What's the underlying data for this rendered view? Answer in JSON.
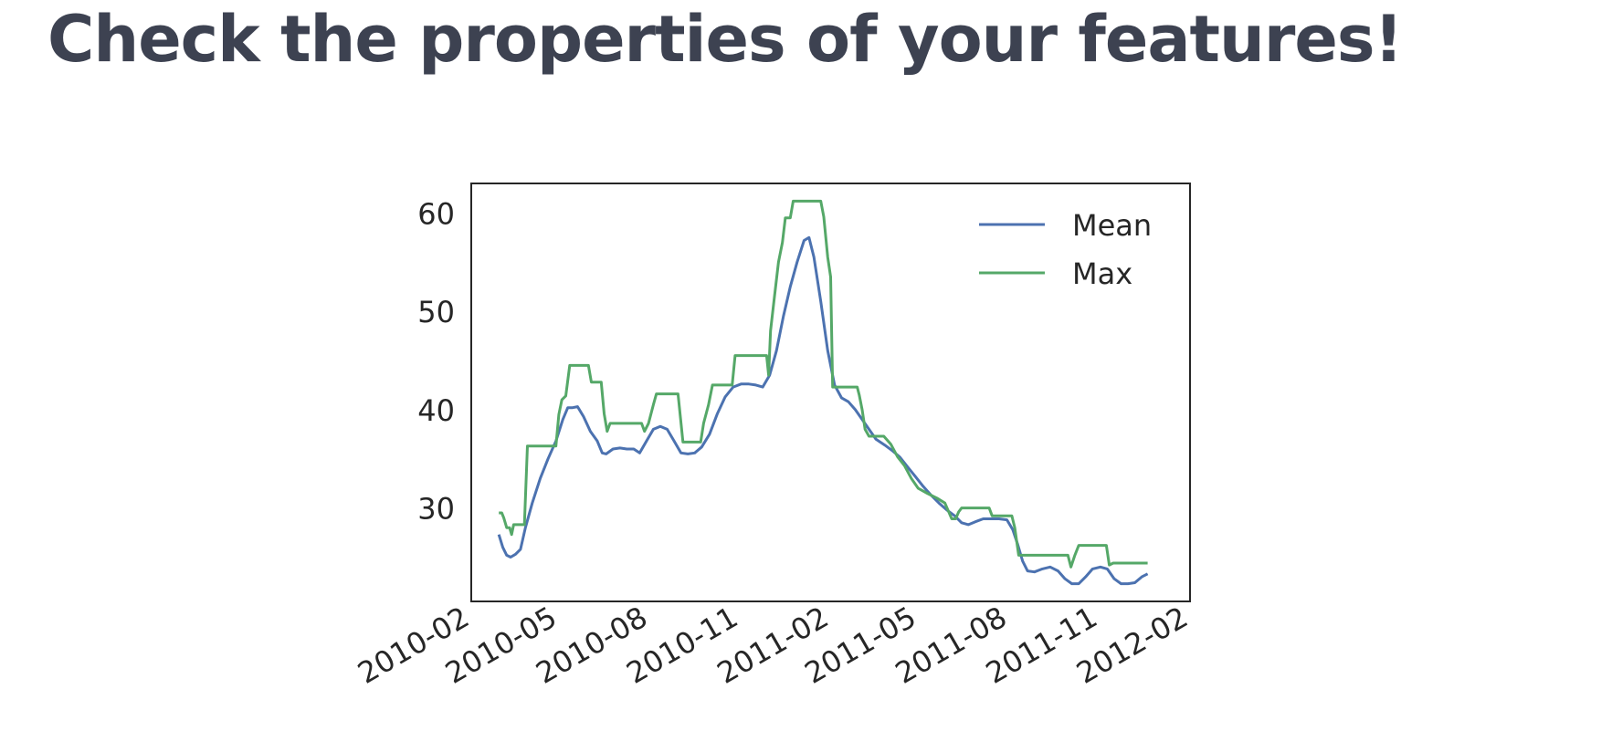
{
  "slide": {
    "title": "Check the properties of your features!"
  },
  "colors": {
    "title": "#3d4251",
    "mean": "#4c72b0",
    "max": "#55a868",
    "axis": "#262626",
    "tick_text": "#262626"
  },
  "chart_data": {
    "type": "line",
    "title": "",
    "xlabel": "",
    "ylabel": "",
    "x_type": "date",
    "xlim": [
      "2010-02-01",
      "2012-02-01"
    ],
    "ylim": [
      20.5,
      63
    ],
    "x_ticks": [
      "2010-02",
      "2010-05",
      "2010-08",
      "2010-11",
      "2011-02",
      "2011-05",
      "2011-08",
      "2011-11",
      "2012-02"
    ],
    "y_ticks": [
      30,
      40,
      50,
      60
    ],
    "grid": false,
    "legend": "top-right",
    "series": [
      {
        "name": "Mean",
        "color": "#4c72b0",
        "points": [
          [
            "2010-03-01",
            27.3
          ],
          [
            "2010-03-05",
            26.0
          ],
          [
            "2010-03-09",
            25.2
          ],
          [
            "2010-03-13",
            25.0
          ],
          [
            "2010-03-18",
            25.3
          ],
          [
            "2010-03-23",
            25.8
          ],
          [
            "2010-03-28",
            28.0
          ],
          [
            "2010-04-04",
            30.5
          ],
          [
            "2010-04-12",
            33.0
          ],
          [
            "2010-04-20",
            35.0
          ],
          [
            "2010-04-28",
            36.8
          ],
          [
            "2010-05-05",
            39.0
          ],
          [
            "2010-05-10",
            40.2
          ],
          [
            "2010-05-15",
            40.2
          ],
          [
            "2010-05-20",
            40.3
          ],
          [
            "2010-05-26",
            39.3
          ],
          [
            "2010-06-02",
            37.8
          ],
          [
            "2010-06-09",
            36.8
          ],
          [
            "2010-06-14",
            35.6
          ],
          [
            "2010-06-18",
            35.5
          ],
          [
            "2010-06-25",
            36.0
          ],
          [
            "2010-07-02",
            36.1
          ],
          [
            "2010-07-09",
            36.0
          ],
          [
            "2010-07-16",
            36.0
          ],
          [
            "2010-07-22",
            35.6
          ],
          [
            "2010-07-29",
            36.8
          ],
          [
            "2010-08-05",
            38.0
          ],
          [
            "2010-08-12",
            38.3
          ],
          [
            "2010-08-19",
            38.0
          ],
          [
            "2010-08-26",
            36.8
          ],
          [
            "2010-09-02",
            35.6
          ],
          [
            "2010-09-09",
            35.5
          ],
          [
            "2010-09-16",
            35.6
          ],
          [
            "2010-09-23",
            36.2
          ],
          [
            "2010-10-01",
            37.5
          ],
          [
            "2010-10-09",
            39.6
          ],
          [
            "2010-10-17",
            41.3
          ],
          [
            "2010-10-25",
            42.3
          ],
          [
            "2010-11-02",
            42.6
          ],
          [
            "2010-11-10",
            42.6
          ],
          [
            "2010-11-17",
            42.5
          ],
          [
            "2010-11-24",
            42.3
          ],
          [
            "2010-12-01",
            43.5
          ],
          [
            "2010-12-08",
            46.0
          ],
          [
            "2010-12-15",
            49.5
          ],
          [
            "2010-12-22",
            52.5
          ],
          [
            "2010-12-29",
            55.0
          ],
          [
            "2011-01-05",
            57.2
          ],
          [
            "2011-01-10",
            57.5
          ],
          [
            "2011-01-15",
            55.5
          ],
          [
            "2011-01-22",
            51.0
          ],
          [
            "2011-01-29",
            46.0
          ],
          [
            "2011-02-05",
            42.5
          ],
          [
            "2011-02-12",
            41.2
          ],
          [
            "2011-02-19",
            40.8
          ],
          [
            "2011-02-26",
            40.0
          ],
          [
            "2011-03-05",
            39.0
          ],
          [
            "2011-03-12",
            38.0
          ],
          [
            "2011-03-19",
            37.0
          ],
          [
            "2011-03-28",
            36.4
          ],
          [
            "2011-04-05",
            35.8
          ],
          [
            "2011-04-12",
            35.2
          ],
          [
            "2011-04-20",
            34.2
          ],
          [
            "2011-04-28",
            33.2
          ],
          [
            "2011-05-06",
            32.2
          ],
          [
            "2011-05-14",
            31.3
          ],
          [
            "2011-05-22",
            30.5
          ],
          [
            "2011-05-30",
            29.8
          ],
          [
            "2011-06-07",
            29.2
          ],
          [
            "2011-06-14",
            28.5
          ],
          [
            "2011-06-21",
            28.3
          ],
          [
            "2011-06-28",
            28.6
          ],
          [
            "2011-07-06",
            28.9
          ],
          [
            "2011-07-14",
            28.9
          ],
          [
            "2011-07-22",
            28.9
          ],
          [
            "2011-07-30",
            28.8
          ],
          [
            "2011-08-05",
            27.8
          ],
          [
            "2011-08-10",
            26.3
          ],
          [
            "2011-08-15",
            24.6
          ],
          [
            "2011-08-20",
            23.6
          ],
          [
            "2011-08-27",
            23.5
          ],
          [
            "2011-09-04",
            23.8
          ],
          [
            "2011-09-12",
            24.0
          ],
          [
            "2011-09-20",
            23.6
          ],
          [
            "2011-09-27",
            22.8
          ],
          [
            "2011-10-04",
            22.3
          ],
          [
            "2011-10-11",
            22.3
          ],
          [
            "2011-10-18",
            23.0
          ],
          [
            "2011-10-25",
            23.8
          ],
          [
            "2011-11-02",
            24.0
          ],
          [
            "2011-11-09",
            23.8
          ],
          [
            "2011-11-16",
            22.8
          ],
          [
            "2011-11-23",
            22.3
          ],
          [
            "2011-11-30",
            22.3
          ],
          [
            "2011-12-07",
            22.4
          ],
          [
            "2011-12-14",
            23.0
          ],
          [
            "2011-12-20",
            23.3
          ]
        ]
      },
      {
        "name": "Max",
        "color": "#55a868",
        "points": [
          [
            "2010-03-01",
            29.5
          ],
          [
            "2010-03-04",
            29.5
          ],
          [
            "2010-03-06",
            29.0
          ],
          [
            "2010-03-09",
            28.0
          ],
          [
            "2010-03-12",
            28.0
          ],
          [
            "2010-03-14",
            27.3
          ],
          [
            "2010-03-16",
            28.3
          ],
          [
            "2010-03-27",
            28.3
          ],
          [
            "2010-03-30",
            36.3
          ],
          [
            "2010-04-28",
            36.3
          ],
          [
            "2010-05-01",
            39.5
          ],
          [
            "2010-05-04",
            41.0
          ],
          [
            "2010-05-08",
            41.4
          ],
          [
            "2010-05-12",
            44.5
          ],
          [
            "2010-05-31",
            44.5
          ],
          [
            "2010-06-03",
            42.8
          ],
          [
            "2010-06-13",
            42.8
          ],
          [
            "2010-06-16",
            39.6
          ],
          [
            "2010-06-19",
            37.8
          ],
          [
            "2010-06-22",
            38.6
          ],
          [
            "2010-07-24",
            38.6
          ],
          [
            "2010-07-27",
            37.8
          ],
          [
            "2010-07-31",
            38.6
          ],
          [
            "2010-08-05",
            40.5
          ],
          [
            "2010-08-08",
            41.6
          ],
          [
            "2010-08-30",
            41.6
          ],
          [
            "2010-09-04",
            36.7
          ],
          [
            "2010-09-22",
            36.7
          ],
          [
            "2010-09-25",
            38.6
          ],
          [
            "2010-09-30",
            40.5
          ],
          [
            "2010-10-04",
            42.5
          ],
          [
            "2010-10-24",
            42.5
          ],
          [
            "2010-10-27",
            45.5
          ],
          [
            "2010-11-28",
            45.5
          ],
          [
            "2010-11-30",
            43.5
          ],
          [
            "2010-12-02",
            48.0
          ],
          [
            "2010-12-06",
            51.5
          ],
          [
            "2010-12-10",
            55.0
          ],
          [
            "2010-12-14",
            57.0
          ],
          [
            "2010-12-17",
            59.5
          ],
          [
            "2010-12-22",
            59.5
          ],
          [
            "2010-12-25",
            61.2
          ],
          [
            "2011-01-22",
            61.2
          ],
          [
            "2011-01-25",
            59.6
          ],
          [
            "2011-01-29",
            55.5
          ],
          [
            "2011-02-01",
            53.5
          ],
          [
            "2011-02-03",
            42.3
          ],
          [
            "2011-02-28",
            42.3
          ],
          [
            "2011-03-02",
            41.5
          ],
          [
            "2011-03-05",
            40.0
          ],
          [
            "2011-03-08",
            38.0
          ],
          [
            "2011-03-12",
            37.3
          ],
          [
            "2011-03-27",
            37.3
          ],
          [
            "2011-04-03",
            36.5
          ],
          [
            "2011-04-10",
            35.2
          ],
          [
            "2011-04-17",
            34.3
          ],
          [
            "2011-04-24",
            33.0
          ],
          [
            "2011-05-01",
            32.0
          ],
          [
            "2011-05-10",
            31.5
          ],
          [
            "2011-05-20",
            31.0
          ],
          [
            "2011-05-28",
            30.5
          ],
          [
            "2011-06-04",
            28.9
          ],
          [
            "2011-06-08",
            28.9
          ],
          [
            "2011-06-11",
            29.6
          ],
          [
            "2011-06-14",
            30.0
          ],
          [
            "2011-07-12",
            30.0
          ],
          [
            "2011-07-15",
            29.2
          ],
          [
            "2011-08-04",
            29.2
          ],
          [
            "2011-08-07",
            28.0
          ],
          [
            "2011-08-11",
            25.2
          ],
          [
            "2011-09-30",
            25.2
          ],
          [
            "2011-10-03",
            24.0
          ],
          [
            "2011-10-07",
            25.2
          ],
          [
            "2011-10-11",
            26.2
          ],
          [
            "2011-11-08",
            26.2
          ],
          [
            "2011-11-11",
            24.2
          ],
          [
            "2011-11-15",
            24.4
          ],
          [
            "2011-12-20",
            24.4
          ]
        ]
      }
    ]
  }
}
